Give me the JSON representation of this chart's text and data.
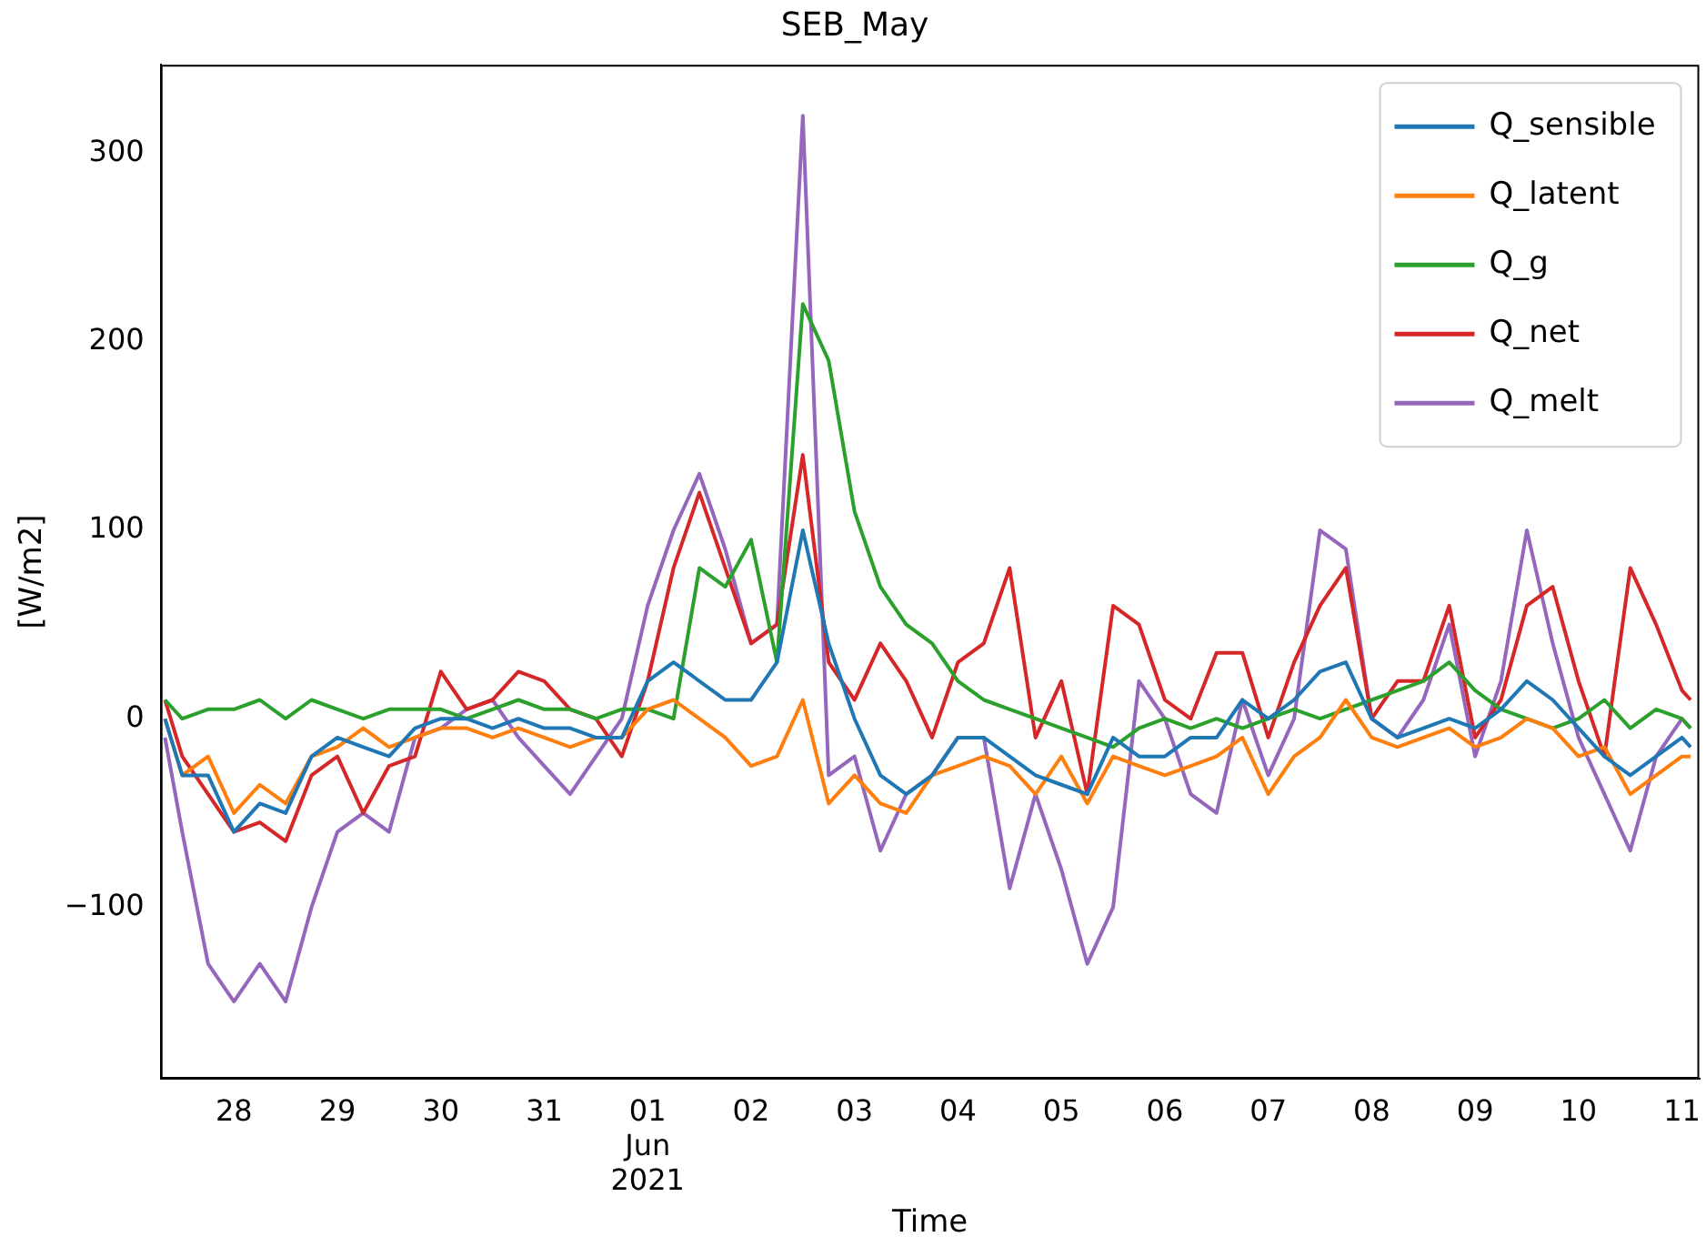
{
  "chart_data": {
    "type": "line",
    "title": "SEB_May",
    "xlabel": "Time",
    "ylabel": "[W/m2]",
    "x": [
      "2021-05-27T08:00",
      "2021-05-27T12:00",
      "2021-05-27T18:00",
      "2021-05-28T00:00",
      "2021-05-28T06:00",
      "2021-05-28T12:00",
      "2021-05-28T18:00",
      "2021-05-29T00:00",
      "2021-05-29T06:00",
      "2021-05-29T12:00",
      "2021-05-29T18:00",
      "2021-05-30T00:00",
      "2021-05-30T06:00",
      "2021-05-30T12:00",
      "2021-05-30T18:00",
      "2021-05-31T00:00",
      "2021-05-31T06:00",
      "2021-05-31T12:00",
      "2021-05-31T18:00",
      "2021-06-01T00:00",
      "2021-06-01T06:00",
      "2021-06-01T12:00",
      "2021-06-01T18:00",
      "2021-06-02T00:00",
      "2021-06-02T06:00",
      "2021-06-02T12:00",
      "2021-06-02T18:00",
      "2021-06-03T00:00",
      "2021-06-03T06:00",
      "2021-06-03T12:00",
      "2021-06-03T18:00",
      "2021-06-04T00:00",
      "2021-06-04T06:00",
      "2021-06-04T12:00",
      "2021-06-04T18:00",
      "2021-06-05T00:00",
      "2021-06-05T06:00",
      "2021-06-05T12:00",
      "2021-06-05T18:00",
      "2021-06-06T00:00",
      "2021-06-06T06:00",
      "2021-06-06T12:00",
      "2021-06-06T18:00",
      "2021-06-07T00:00",
      "2021-06-07T06:00",
      "2021-06-07T12:00",
      "2021-06-07T18:00",
      "2021-06-08T00:00",
      "2021-06-08T06:00",
      "2021-06-08T12:00",
      "2021-06-08T18:00",
      "2021-06-09T00:00",
      "2021-06-09T06:00",
      "2021-06-09T12:00",
      "2021-06-09T18:00",
      "2021-06-10T00:00",
      "2021-06-10T06:00",
      "2021-06-10T12:00",
      "2021-06-10T18:00",
      "2021-06-11T00:00",
      "2021-06-11T02:00"
    ],
    "series": [
      {
        "name": "Q_sensible",
        "color": "#1f77b4",
        "values": [
          0,
          -30,
          -30,
          -60,
          -45,
          -50,
          -20,
          -10,
          -15,
          -20,
          -5,
          0,
          0,
          -5,
          0,
          -5,
          -5,
          -10,
          -10,
          20,
          30,
          20,
          10,
          10,
          30,
          100,
          40,
          0,
          -30,
          -40,
          -30,
          -10,
          -10,
          -20,
          -30,
          -35,
          -40,
          -10,
          -20,
          -20,
          -10,
          -10,
          10,
          0,
          10,
          25,
          30,
          0,
          -10,
          -5,
          0,
          -5,
          5,
          20,
          10,
          -5,
          -20,
          -30,
          -20,
          -10,
          -15
        ]
      },
      {
        "name": "Q_latent",
        "color": "#ff7f0e",
        "values": [
          0,
          -30,
          -20,
          -50,
          -35,
          -45,
          -20,
          -15,
          -5,
          -15,
          -10,
          -5,
          -5,
          -10,
          -5,
          -10,
          -15,
          -10,
          -10,
          5,
          10,
          0,
          -10,
          -25,
          -20,
          10,
          -45,
          -30,
          -45,
          -50,
          -30,
          -25,
          -20,
          -25,
          -40,
          -20,
          -45,
          -20,
          -25,
          -30,
          -25,
          -20,
          -10,
          -40,
          -20,
          -10,
          10,
          -10,
          -15,
          -10,
          -5,
          -15,
          -10,
          0,
          -5,
          -20,
          -15,
          -40,
          -30,
          -20,
          -20
        ]
      },
      {
        "name": "Q_g",
        "color": "#2ca02c",
        "values": [
          10,
          0,
          5,
          5,
          10,
          0,
          10,
          5,
          0,
          5,
          5,
          5,
          0,
          5,
          10,
          5,
          5,
          0,
          5,
          5,
          0,
          80,
          70,
          95,
          30,
          220,
          190,
          110,
          70,
          50,
          40,
          20,
          10,
          5,
          0,
          -5,
          -10,
          -15,
          -5,
          0,
          -5,
          0,
          -5,
          0,
          5,
          0,
          5,
          10,
          15,
          20,
          30,
          15,
          5,
          0,
          -5,
          0,
          10,
          -5,
          5,
          0,
          -5
        ]
      },
      {
        "name": "Q_net",
        "color": "#d62728",
        "values": [
          10,
          -20,
          -40,
          -60,
          -55,
          -65,
          -30,
          -20,
          -50,
          -25,
          -20,
          25,
          5,
          10,
          25,
          20,
          5,
          0,
          -20,
          20,
          80,
          120,
          80,
          40,
          50,
          140,
          30,
          10,
          40,
          20,
          -10,
          30,
          40,
          80,
          -10,
          20,
          -40,
          60,
          50,
          10,
          0,
          35,
          35,
          -10,
          30,
          60,
          80,
          0,
          20,
          20,
          60,
          -10,
          10,
          60,
          70,
          20,
          -20,
          80,
          50,
          15,
          10
        ]
      },
      {
        "name": "Q_melt",
        "color": "#9467bd",
        "values": [
          -10,
          -60,
          -130,
          -150,
          -130,
          -150,
          -100,
          -60,
          -50,
          -60,
          -10,
          -5,
          5,
          10,
          -10,
          -25,
          -40,
          -20,
          0,
          60,
          100,
          130,
          90,
          40,
          50,
          320,
          -30,
          -20,
          -70,
          -40,
          -30,
          -10,
          -10,
          -90,
          -40,
          -80,
          -130,
          -100,
          20,
          0,
          -40,
          -50,
          10,
          -30,
          0,
          100,
          90,
          0,
          -10,
          10,
          50,
          -20,
          20,
          100,
          40,
          -10,
          -40,
          -70,
          -20,
          0,
          -5
        ]
      }
    ],
    "xlim": [
      "2021-05-27T07:00",
      "2021-06-11T04:00"
    ],
    "xticks": [
      {
        "value": "2021-05-28",
        "label": "28"
      },
      {
        "value": "2021-05-29",
        "label": "29"
      },
      {
        "value": "2021-05-30",
        "label": "30"
      },
      {
        "value": "2021-05-31",
        "label": "31"
      },
      {
        "value": "2021-06-01",
        "label": "01\nJun\n2021"
      },
      {
        "value": "2021-06-02",
        "label": "02"
      },
      {
        "value": "2021-06-03",
        "label": "03"
      },
      {
        "value": "2021-06-04",
        "label": "04"
      },
      {
        "value": "2021-06-05",
        "label": "05"
      },
      {
        "value": "2021-06-06",
        "label": "06"
      },
      {
        "value": "2021-06-07",
        "label": "07"
      },
      {
        "value": "2021-06-08",
        "label": "08"
      },
      {
        "value": "2021-06-09",
        "label": "09"
      },
      {
        "value": "2021-06-10",
        "label": "10"
      },
      {
        "value": "2021-06-11",
        "label": "11"
      }
    ],
    "ylim": [
      -191,
      347
    ],
    "yticks": [
      {
        "value": -100,
        "label": "−100"
      },
      0,
      100,
      200,
      300
    ],
    "grid": false,
    "legend": "top right",
    "line_style": "solid",
    "marker": "none"
  }
}
